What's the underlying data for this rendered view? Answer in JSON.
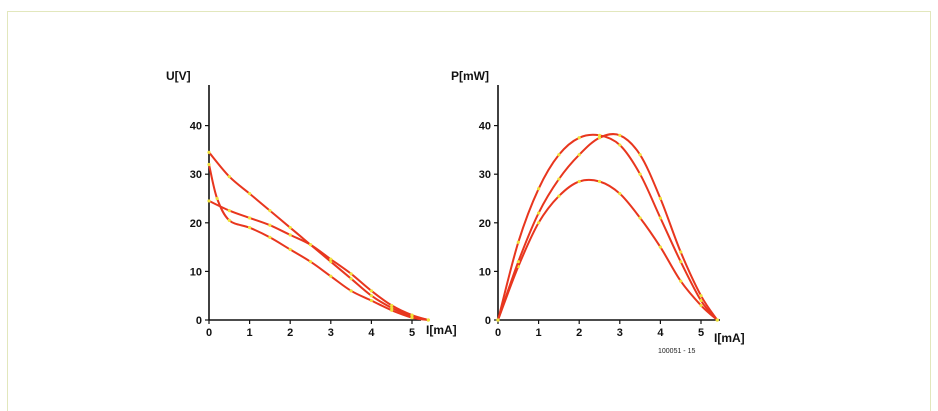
{
  "figure_label": "100051 - 15",
  "colors": {
    "curve": "#e8361e",
    "points": "#f0e23a",
    "frame": "#e2e7bd"
  },
  "chart_data": [
    {
      "type": "line",
      "ylabel": "U[V]",
      "xlabel": "I[mA]",
      "xlim": [
        0,
        5.5
      ],
      "ylim": [
        0,
        45
      ],
      "x_ticks": [
        0,
        1,
        2,
        3,
        4,
        5
      ],
      "y_ticks": [
        0,
        10,
        20,
        30,
        40
      ],
      "series": [
        {
          "x": [
            0,
            0.5,
            1,
            1.5,
            2,
            2.5,
            3,
            3.5,
            4,
            4.5,
            5,
            5.4
          ],
          "y": [
            34.5,
            29.5,
            26,
            22.5,
            19,
            15.5,
            12,
            8.5,
            5,
            2.5,
            0.8,
            0
          ]
        },
        {
          "x": [
            0,
            0.5,
            1,
            1.5,
            2,
            2.5,
            3,
            3.5,
            4,
            4.5,
            5,
            5.4
          ],
          "y": [
            24.5,
            22.5,
            21,
            19.5,
            17.5,
            15.5,
            12.5,
            9.5,
            6,
            3,
            1,
            0
          ]
        },
        {
          "x": [
            0,
            0.2,
            0.5,
            1,
            1.5,
            2,
            2.5,
            3,
            3.5,
            4,
            4.5,
            5,
            5.4
          ],
          "y": [
            32,
            25,
            20.5,
            19,
            17,
            14.5,
            12,
            9,
            6,
            4,
            2,
            0.5,
            0
          ]
        }
      ]
    },
    {
      "type": "line",
      "ylabel": "P[mW]",
      "xlabel": "I[mA]",
      "xlim": [
        0,
        5.5
      ],
      "ylim": [
        0,
        45
      ],
      "x_ticks": [
        0,
        1,
        2,
        3,
        4,
        5
      ],
      "y_ticks": [
        0,
        10,
        20,
        30,
        40
      ],
      "series": [
        {
          "x": [
            0,
            0.5,
            1,
            1.5,
            2,
            2.5,
            3,
            3.5,
            4,
            4.5,
            5,
            5.4
          ],
          "y": [
            0,
            16,
            27,
            34,
            37.5,
            38,
            36,
            30,
            21,
            12,
            4,
            0
          ]
        },
        {
          "x": [
            0,
            0.5,
            1,
            1.5,
            2,
            2.5,
            3,
            3.5,
            4,
            4.5,
            5,
            5.4
          ],
          "y": [
            0,
            11,
            20,
            25.5,
            28.5,
            28.5,
            26,
            21,
            15,
            8,
            3,
            0
          ]
        },
        {
          "x": [
            0,
            0.5,
            1,
            1.5,
            2,
            2.5,
            3,
            3.5,
            4,
            4.5,
            5,
            5.4
          ],
          "y": [
            0,
            12,
            22,
            29,
            34,
            37.5,
            38,
            34,
            25,
            14,
            5,
            0
          ]
        }
      ]
    }
  ]
}
